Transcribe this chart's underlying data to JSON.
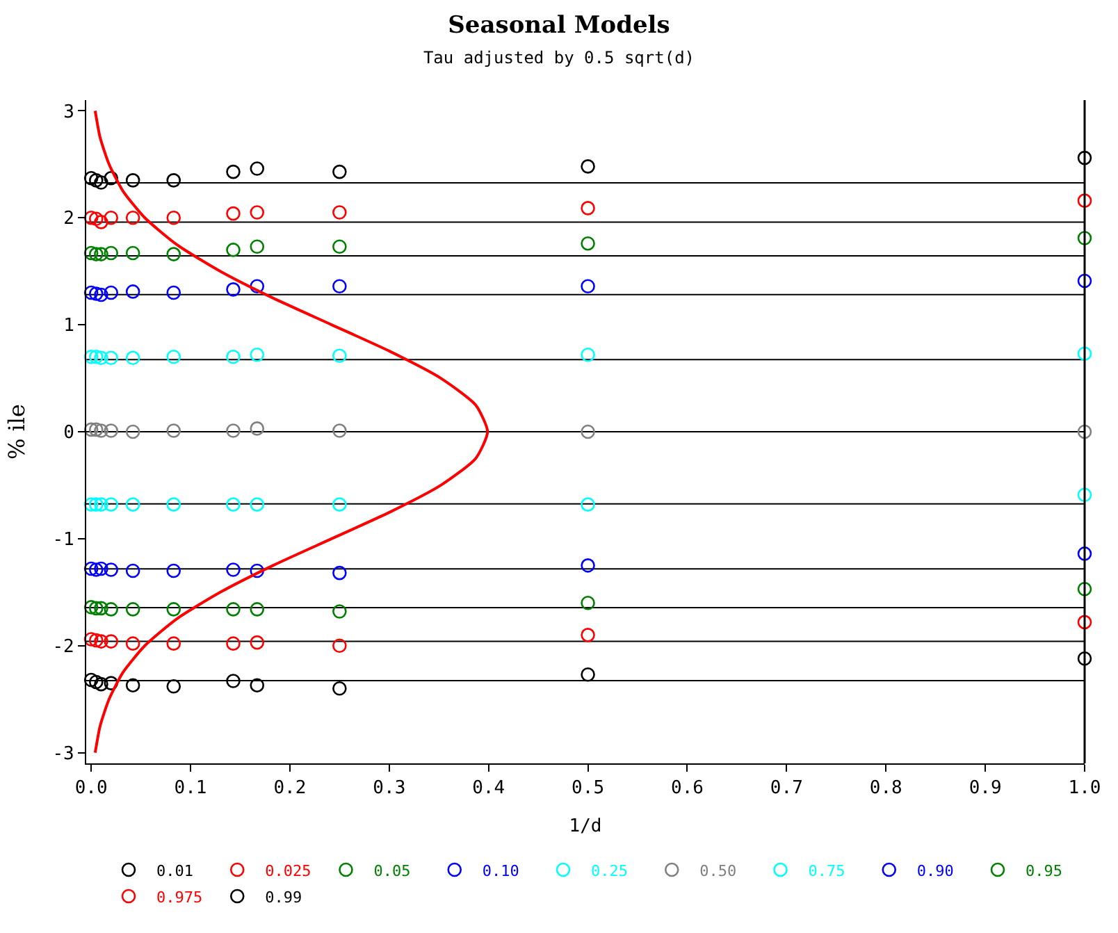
{
  "chart_data": {
    "type": "scatter",
    "title": "Seasonal Models",
    "subtitle": "Tau adjusted by 0.5 sqrt(d)",
    "xlabel": "1/d",
    "ylabel": "% ile",
    "x": [
      0.0,
      0.005,
      0.01,
      0.02,
      0.042,
      0.083,
      0.143,
      0.167,
      0.25,
      0.5,
      1.0
    ],
    "xlim": [
      -0.005,
      1.0
    ],
    "xticks": [
      {
        "value": 0,
        "label": "0.0"
      },
      0.1,
      0.2,
      0.3,
      0.4,
      0.5,
      0.6,
      0.7,
      0.8,
      0.9,
      {
        "value": 1,
        "label": "1.0"
      }
    ],
    "ylim": [
      -3.1,
      3.1
    ],
    "yticks": [
      -3,
      -2,
      -1,
      0,
      1,
      2,
      3
    ],
    "grid": false,
    "legend": "bottom",
    "marker": "circle",
    "series": [
      {
        "name": "0.01",
        "color": "#000000",
        "values": [
          -2.32,
          -2.34,
          -2.36,
          -2.35,
          -2.37,
          -2.38,
          -2.33,
          -2.37,
          -2.4,
          -2.27,
          -2.12
        ]
      },
      {
        "name": "0.025",
        "color": "#ff0000",
        "values": [
          -1.94,
          -1.95,
          -1.96,
          -1.96,
          -1.98,
          -1.98,
          -1.98,
          -1.97,
          -2.0,
          -1.9,
          -1.78
        ]
      },
      {
        "name": "0.05",
        "color": "#008000",
        "values": [
          -1.64,
          -1.65,
          -1.65,
          -1.66,
          -1.66,
          -1.66,
          -1.66,
          -1.66,
          -1.68,
          -1.6,
          -1.47
        ]
      },
      {
        "name": "0.10",
        "color": "#0000ff",
        "values": [
          -1.28,
          -1.29,
          -1.28,
          -1.29,
          -1.3,
          -1.3,
          -1.29,
          -1.3,
          -1.32,
          -1.25,
          -1.14
        ]
      },
      {
        "name": "0.25",
        "color": "#00ffff",
        "values": [
          -0.68,
          -0.68,
          -0.68,
          -0.68,
          -0.68,
          -0.68,
          -0.68,
          -0.68,
          -0.68,
          -0.68,
          -0.59
        ]
      },
      {
        "name": "0.50",
        "color": "#808080",
        "values": [
          0.02,
          0.02,
          0.01,
          0.01,
          0.0,
          0.01,
          0.01,
          0.03,
          0.01,
          0.0,
          0.0
        ]
      },
      {
        "name": "0.75",
        "color": "#00ffff",
        "values": [
          0.7,
          0.7,
          0.69,
          0.69,
          0.69,
          0.7,
          0.7,
          0.72,
          0.71,
          0.72,
          0.73
        ]
      },
      {
        "name": "0.90",
        "color": "#0000ff",
        "values": [
          1.3,
          1.29,
          1.28,
          1.3,
          1.31,
          1.3,
          1.33,
          1.36,
          1.36,
          1.36,
          1.41
        ]
      },
      {
        "name": "0.95",
        "color": "#008000",
        "values": [
          1.67,
          1.66,
          1.66,
          1.67,
          1.67,
          1.66,
          1.7,
          1.73,
          1.73,
          1.76,
          1.81
        ]
      },
      {
        "name": "0.975",
        "color": "#ff0000",
        "values": [
          2.0,
          1.99,
          1.96,
          2.0,
          2.0,
          2.0,
          2.04,
          2.05,
          2.05,
          2.09,
          2.16
        ]
      },
      {
        "name": "0.99",
        "color": "#000000",
        "values": [
          2.37,
          2.35,
          2.33,
          2.37,
          2.35,
          2.35,
          2.43,
          2.46,
          2.43,
          2.48,
          2.56
        ]
      },
      {
        "type": "line",
        "color": "#ff0000",
        "marker": "none",
        "x": [
          0.004,
          0.009,
          0.018,
          0.032,
          0.054,
          0.086,
          0.13,
          0.183,
          0.242,
          0.301,
          0.352,
          0.387,
          0.399,
          0.387,
          0.352,
          0.301,
          0.242,
          0.183,
          0.13,
          0.086,
          0.054,
          0.032,
          0.018,
          0.009,
          0.004
        ],
        "values": [
          -3,
          -2.75,
          -2.5,
          -2.25,
          -2,
          -1.75,
          -1.5,
          -1.25,
          -1,
          -0.75,
          -0.5,
          -0.25,
          0,
          0.25,
          0.5,
          0.75,
          1,
          1.25,
          1.5,
          1.75,
          2,
          2.25,
          2.5,
          2.75,
          3
        ]
      }
    ],
    "ref_lines": [
      {
        "axis": "y",
        "value": -2.326,
        "color": "#000000"
      },
      {
        "axis": "y",
        "value": -1.96,
        "color": "#000000"
      },
      {
        "axis": "y",
        "value": -1.645,
        "color": "#000000"
      },
      {
        "axis": "y",
        "value": -1.282,
        "color": "#000000"
      },
      {
        "axis": "y",
        "value": -0.674,
        "color": "#000000"
      },
      {
        "axis": "y",
        "value": 0,
        "color": "#000000"
      },
      {
        "axis": "y",
        "value": 0.674,
        "color": "#000000"
      },
      {
        "axis": "y",
        "value": 1.282,
        "color": "#000000"
      },
      {
        "axis": "y",
        "value": 1.645,
        "color": "#000000"
      },
      {
        "axis": "y",
        "value": 1.96,
        "color": "#000000"
      },
      {
        "axis": "y",
        "value": 2.326,
        "color": "#000000"
      }
    ]
  }
}
